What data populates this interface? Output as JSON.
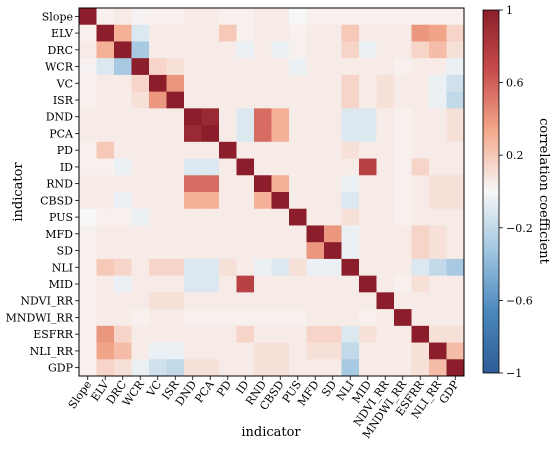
{
  "chart_data": {
    "type": "heatmap",
    "title": "",
    "xlabel": "indicator",
    "ylabel": "indicator",
    "labels": [
      "Slope",
      "ELV",
      "DRC",
      "WCR",
      "VC",
      "ISR",
      "DND",
      "PCA",
      "PD",
      "ID",
      "RND",
      "CBSD",
      "PUS",
      "MFD",
      "SD",
      "NLI",
      "MID",
      "NDVI_RR",
      "MNDWI_RR",
      "ESFRR",
      "NLI_RR",
      "GDP"
    ],
    "colorbar": {
      "label": "correlation coefficient",
      "range": [
        -1,
        1
      ],
      "ticks": [
        1,
        0.6,
        0.2,
        -0.2,
        -0.6,
        -1
      ],
      "tick_labels": [
        "1",
        "0.6",
        "0.2",
        "−0.2",
        "−0.6",
        "−1"
      ],
      "colormap": "RdBu_r",
      "stops": [
        "#2e5c97",
        "#4a87bc",
        "#9ec5e0",
        "#f7f7f7",
        "#f4a98c",
        "#c74d4c",
        "#8b1e2a"
      ]
    },
    "values": [
      [
        1,
        0.03,
        0.05,
        0.02,
        0.03,
        0.03,
        0.05,
        0.05,
        0.03,
        0.03,
        0.05,
        0.05,
        0,
        0.03,
        0.03,
        0.03,
        0.03,
        0.03,
        0.03,
        0.03,
        0.03,
        0.03
      ],
      [
        0.03,
        1,
        0.3,
        -0.1,
        0.05,
        0.05,
        0.05,
        0.05,
        0.2,
        0.03,
        0.05,
        0.05,
        0.03,
        0.05,
        0.05,
        0.2,
        0.05,
        0.05,
        0.05,
        0.4,
        0.35,
        0.15
      ],
      [
        0.05,
        0.3,
        1,
        -0.3,
        0.05,
        0.05,
        0.05,
        0.05,
        0.05,
        -0.05,
        0.05,
        -0.05,
        0.03,
        0.05,
        0.05,
        0.15,
        -0.05,
        0.05,
        0.05,
        0.15,
        0.25,
        0.1
      ],
      [
        0.02,
        -0.1,
        -0.3,
        1,
        0.15,
        0.1,
        0.05,
        0.05,
        0.05,
        0.05,
        0.05,
        0.05,
        -0.05,
        0.05,
        0.05,
        0.05,
        0.05,
        0.05,
        0.03,
        0.05,
        0.05,
        -0.05
      ],
      [
        0.03,
        0.05,
        0.05,
        0.15,
        1,
        0.4,
        0.05,
        0.05,
        0.05,
        0.05,
        0.05,
        0.05,
        0.05,
        0.05,
        0.05,
        0.15,
        0.05,
        0.1,
        0.05,
        0.05,
        -0.05,
        -0.15
      ],
      [
        0.03,
        0.05,
        0.05,
        0.1,
        0.4,
        1,
        0.05,
        0.05,
        0.05,
        0.05,
        0.05,
        0.05,
        0.05,
        0.05,
        0.05,
        0.15,
        0.05,
        0.1,
        0.05,
        0.05,
        -0.05,
        -0.2
      ],
      [
        0.05,
        0.05,
        0.05,
        0.05,
        0.05,
        0.05,
        1,
        0.92,
        0.05,
        -0.1,
        0.55,
        0.3,
        0.05,
        0.05,
        0.05,
        -0.1,
        -0.1,
        0.05,
        0.03,
        0.05,
        0.05,
        0.1
      ],
      [
        0.05,
        0.05,
        0.05,
        0.05,
        0.05,
        0.05,
        0.92,
        1,
        0.05,
        -0.1,
        0.55,
        0.3,
        0.05,
        0.05,
        0.05,
        -0.1,
        -0.1,
        0.05,
        0.03,
        0.05,
        0.05,
        0.1
      ],
      [
        0.03,
        0.2,
        0.05,
        0.05,
        0.05,
        0.05,
        0.05,
        0.05,
        1,
        0.05,
        0.05,
        0.05,
        0.05,
        0.05,
        0.05,
        0.1,
        0.05,
        0.05,
        0.03,
        0.05,
        0.05,
        0.05
      ],
      [
        0.03,
        0.03,
        -0.05,
        0.05,
        0.05,
        0.05,
        -0.1,
        -0.1,
        0.05,
        1,
        0.05,
        0.05,
        0.05,
        0.05,
        0.05,
        0.05,
        0.75,
        0.05,
        0.03,
        0.15,
        0.05,
        0.05
      ],
      [
        0.05,
        0.05,
        0.05,
        0.05,
        0.05,
        0.05,
        0.55,
        0.55,
        0.05,
        0.05,
        1,
        0.3,
        0.05,
        0.05,
        0.05,
        -0.05,
        0.05,
        0.05,
        0.03,
        0.05,
        0.1,
        0.1
      ],
      [
        0.05,
        0.05,
        -0.05,
        0.05,
        0.05,
        0.05,
        0.3,
        0.3,
        0.05,
        0.05,
        0.3,
        1,
        0.05,
        0.05,
        0.05,
        -0.1,
        0.05,
        0.05,
        0.03,
        0.05,
        0.1,
        0.1
      ],
      [
        0,
        0.03,
        0.03,
        -0.05,
        0.05,
        0.05,
        0.05,
        0.05,
        0.05,
        0.05,
        0.05,
        0.05,
        1,
        0.05,
        0.05,
        0.1,
        0.05,
        0.05,
        0.03,
        0.05,
        0.05,
        0.05
      ],
      [
        0.03,
        0.05,
        0.05,
        0.05,
        0.05,
        0.05,
        0.05,
        0.05,
        0.05,
        0.05,
        0.05,
        0.05,
        0.05,
        1,
        0.4,
        -0.05,
        0.05,
        0.05,
        0.05,
        0.15,
        0.1,
        0.05
      ],
      [
        0.03,
        0.05,
        0.05,
        0.05,
        0.05,
        0.05,
        0.05,
        0.05,
        0.05,
        0.05,
        0.05,
        0.05,
        0.05,
        0.4,
        1,
        -0.05,
        0.05,
        0.05,
        0.05,
        0.15,
        0.1,
        0.05
      ],
      [
        0.03,
        0.2,
        0.15,
        0.05,
        0.15,
        0.15,
        -0.1,
        -0.1,
        0.1,
        0.05,
        -0.05,
        -0.1,
        0.1,
        -0.05,
        -0.05,
        1,
        0.05,
        0.05,
        0.05,
        -0.1,
        -0.2,
        -0.3
      ],
      [
        0.03,
        0.05,
        -0.05,
        0.05,
        0.05,
        0.05,
        -0.1,
        -0.1,
        0.05,
        0.75,
        0.05,
        0.05,
        0.05,
        0.05,
        0.05,
        0.05,
        1,
        0.05,
        0.03,
        0.1,
        0.05,
        0.05
      ],
      [
        0.03,
        0.05,
        0.05,
        0.05,
        0.1,
        0.1,
        0.05,
        0.05,
        0.05,
        0.05,
        0.05,
        0.05,
        0.05,
        0.05,
        0.05,
        0.05,
        0.05,
        1,
        0.05,
        0.05,
        0.05,
        0.05
      ],
      [
        0.03,
        0.05,
        0.05,
        0.03,
        0.05,
        0.05,
        0.03,
        0.03,
        0.03,
        0.03,
        0.03,
        0.03,
        0.03,
        0.05,
        0.05,
        0.05,
        0.03,
        0.05,
        1,
        0.05,
        0.05,
        0.05
      ],
      [
        0.03,
        0.4,
        0.15,
        0.05,
        0.05,
        0.05,
        0.05,
        0.05,
        0.05,
        0.15,
        0.05,
        0.05,
        0.05,
        0.15,
        0.15,
        -0.1,
        0.1,
        0.05,
        0.05,
        1,
        0.1,
        0.1
      ],
      [
        0.03,
        0.35,
        0.25,
        0.05,
        -0.05,
        -0.05,
        0.05,
        0.05,
        0.05,
        0.05,
        0.1,
        0.1,
        0.05,
        0.1,
        0.1,
        -0.2,
        0.05,
        0.05,
        0.05,
        0.1,
        1,
        0.25
      ],
      [
        0.03,
        0.15,
        0.1,
        -0.05,
        -0.15,
        -0.2,
        0.1,
        0.1,
        0.05,
        0.05,
        0.1,
        0.1,
        0.05,
        0.05,
        0.05,
        -0.3,
        0.05,
        0.05,
        0.05,
        0.1,
        0.25,
        1
      ]
    ]
  }
}
